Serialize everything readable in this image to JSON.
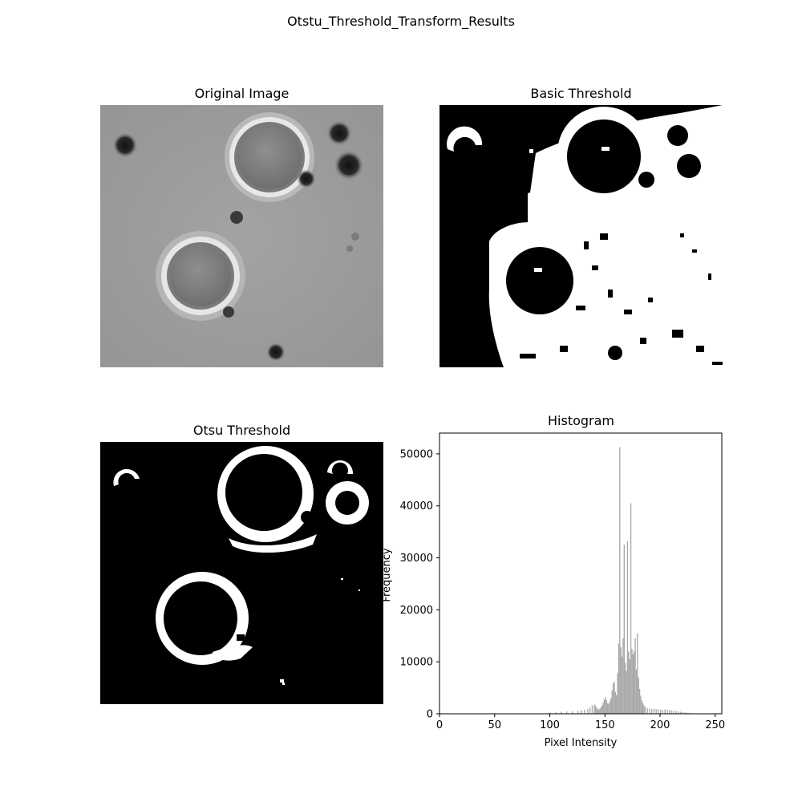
{
  "figure": {
    "title": "Otstu_Threshold_Transform_Results"
  },
  "panels": {
    "original": {
      "title": "Original Image"
    },
    "basic": {
      "title": "Basic Threshold"
    },
    "otsu": {
      "title": "Otsu Threshold"
    }
  },
  "chart_data": {
    "type": "bar",
    "title": "Histogram",
    "xlabel": "Pixel Intensity",
    "ylabel": "Frequency",
    "xlim": [
      0,
      256
    ],
    "ylim": [
      0,
      54000
    ],
    "x_ticks": [
      0,
      50,
      100,
      150,
      200,
      250
    ],
    "y_ticks": [
      0,
      10000,
      20000,
      30000,
      40000,
      50000
    ],
    "bar_color": "#a9a9a9",
    "grid": false,
    "bins": [
      {
        "x": 100,
        "v": 250
      },
      {
        "x": 105,
        "v": 300
      },
      {
        "x": 110,
        "v": 400
      },
      {
        "x": 115,
        "v": 450
      },
      {
        "x": 120,
        "v": 500
      },
      {
        "x": 125,
        "v": 550
      },
      {
        "x": 128,
        "v": 700
      },
      {
        "x": 131,
        "v": 800
      },
      {
        "x": 134,
        "v": 900
      },
      {
        "x": 136,
        "v": 1200
      },
      {
        "x": 138,
        "v": 1600
      },
      {
        "x": 140,
        "v": 1800
      },
      {
        "x": 141,
        "v": 1500
      },
      {
        "x": 142,
        "v": 1200
      },
      {
        "x": 143,
        "v": 900
      },
      {
        "x": 144,
        "v": 800
      },
      {
        "x": 145,
        "v": 1000
      },
      {
        "x": 146,
        "v": 1300
      },
      {
        "x": 147,
        "v": 1700
      },
      {
        "x": 148,
        "v": 2200
      },
      {
        "x": 149,
        "v": 2800
      },
      {
        "x": 150,
        "v": 3200
      },
      {
        "x": 151,
        "v": 2600
      },
      {
        "x": 152,
        "v": 2000
      },
      {
        "x": 153,
        "v": 1900
      },
      {
        "x": 154,
        "v": 2400
      },
      {
        "x": 155,
        "v": 3000
      },
      {
        "x": 156,
        "v": 4500
      },
      {
        "x": 157,
        "v": 5800
      },
      {
        "x": 158,
        "v": 6200
      },
      {
        "x": 159,
        "v": 4200
      },
      {
        "x": 160,
        "v": 3600
      },
      {
        "x": 161,
        "v": 7800
      },
      {
        "x": 162,
        "v": 13500
      },
      {
        "x": 163,
        "v": 51300
      },
      {
        "x": 164,
        "v": 12800
      },
      {
        "x": 165,
        "v": 11000
      },
      {
        "x": 166,
        "v": 14500
      },
      {
        "x": 167,
        "v": 32500
      },
      {
        "x": 168,
        "v": 9800
      },
      {
        "x": 169,
        "v": 8200
      },
      {
        "x": 170,
        "v": 33200
      },
      {
        "x": 171,
        "v": 12000
      },
      {
        "x": 172,
        "v": 10500
      },
      {
        "x": 173,
        "v": 40500
      },
      {
        "x": 174,
        "v": 12500
      },
      {
        "x": 175,
        "v": 11500
      },
      {
        "x": 176,
        "v": 12000
      },
      {
        "x": 177,
        "v": 14500
      },
      {
        "x": 178,
        "v": 8500
      },
      {
        "x": 179,
        "v": 15500
      },
      {
        "x": 180,
        "v": 7000
      },
      {
        "x": 181,
        "v": 4800
      },
      {
        "x": 182,
        "v": 3500
      },
      {
        "x": 183,
        "v": 2600
      },
      {
        "x": 184,
        "v": 2000
      },
      {
        "x": 185,
        "v": 1600
      },
      {
        "x": 186,
        "v": 1300
      },
      {
        "x": 188,
        "v": 1100
      },
      {
        "x": 190,
        "v": 1000
      },
      {
        "x": 192,
        "v": 900
      },
      {
        "x": 194,
        "v": 950
      },
      {
        "x": 196,
        "v": 900
      },
      {
        "x": 198,
        "v": 850
      },
      {
        "x": 200,
        "v": 800
      },
      {
        "x": 202,
        "v": 750
      },
      {
        "x": 204,
        "v": 850
      },
      {
        "x": 206,
        "v": 800
      },
      {
        "x": 208,
        "v": 700
      },
      {
        "x": 210,
        "v": 650
      },
      {
        "x": 212,
        "v": 600
      },
      {
        "x": 214,
        "v": 550
      },
      {
        "x": 216,
        "v": 450
      },
      {
        "x": 218,
        "v": 400
      },
      {
        "x": 220,
        "v": 300
      },
      {
        "x": 222,
        "v": 250
      },
      {
        "x": 224,
        "v": 200
      },
      {
        "x": 226,
        "v": 150
      },
      {
        "x": 228,
        "v": 120
      },
      {
        "x": 230,
        "v": 80
      },
      {
        "x": 235,
        "v": 40
      },
      {
        "x": 240,
        "v": 20
      }
    ]
  }
}
